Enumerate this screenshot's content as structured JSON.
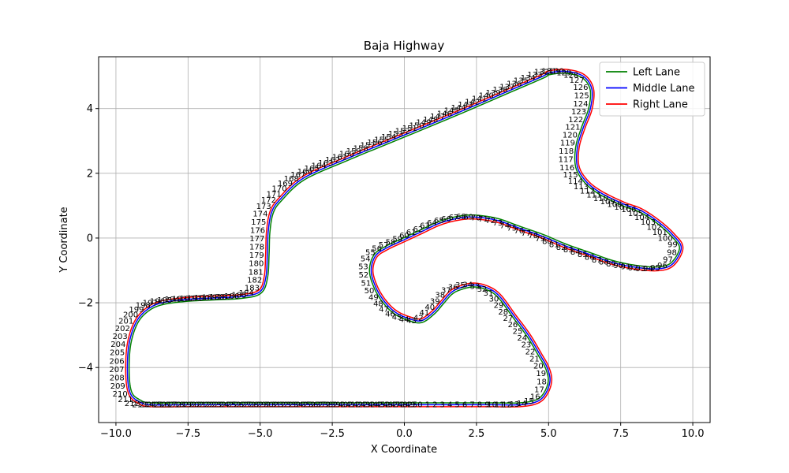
{
  "chart_data": {
    "type": "line",
    "title": "Baja Highway",
    "xlabel": "X Coordinate",
    "ylabel": "Y Coordinate",
    "xlim": [
      -10.6,
      10.6
    ],
    "ylim": [
      -5.7,
      5.6
    ],
    "xticks": [
      -10.0,
      -7.5,
      -5.0,
      -2.5,
      0.0,
      2.5,
      5.0,
      7.5,
      10.0
    ],
    "xtick_labels": [
      "−10.0",
      "−7.5",
      "−5.0",
      "−2.5",
      "0.0",
      "2.5",
      "5.0",
      "7.5",
      "10.0"
    ],
    "yticks": [
      -4,
      -2,
      0,
      2,
      4
    ],
    "ytick_labels": [
      "−4",
      "−2",
      "0",
      "2",
      "4"
    ],
    "grid": true,
    "legend_position": "top-right",
    "centerline": [
      [
        1.0,
        -5.15
      ],
      [
        2.0,
        -5.15
      ],
      [
        3.0,
        -5.15
      ],
      [
        4.0,
        -5.15
      ],
      [
        4.6,
        -5.05
      ],
      [
        4.9,
        -4.8
      ],
      [
        5.05,
        -4.4
      ],
      [
        4.95,
        -4.0
      ],
      [
        4.7,
        -3.6
      ],
      [
        4.3,
        -3.0
      ],
      [
        3.8,
        -2.4
      ],
      [
        3.3,
        -1.8
      ],
      [
        2.9,
        -1.55
      ],
      [
        2.4,
        -1.45
      ],
      [
        1.9,
        -1.55
      ],
      [
        1.6,
        -1.7
      ],
      [
        1.3,
        -2.0
      ],
      [
        1.0,
        -2.3
      ],
      [
        0.6,
        -2.55
      ],
      [
        0.2,
        -2.5
      ],
      [
        -0.3,
        -2.3
      ],
      [
        -0.7,
        -1.95
      ],
      [
        -1.0,
        -1.5
      ],
      [
        -1.15,
        -1.0
      ],
      [
        -1.0,
        -0.55
      ],
      [
        -0.6,
        -0.3
      ],
      [
        0.0,
        -0.05
      ],
      [
        0.6,
        0.2
      ],
      [
        1.2,
        0.45
      ],
      [
        1.8,
        0.6
      ],
      [
        2.4,
        0.65
      ],
      [
        3.2,
        0.55
      ],
      [
        4.0,
        0.3
      ],
      [
        4.8,
        0.05
      ],
      [
        5.6,
        -0.25
      ],
      [
        6.4,
        -0.5
      ],
      [
        7.2,
        -0.75
      ],
      [
        8.0,
        -0.9
      ],
      [
        8.8,
        -0.95
      ],
      [
        9.3,
        -0.8
      ],
      [
        9.6,
        -0.3
      ],
      [
        9.3,
        0.1
      ],
      [
        8.8,
        0.5
      ],
      [
        8.2,
        0.85
      ],
      [
        7.6,
        1.05
      ],
      [
        6.8,
        1.4
      ],
      [
        6.3,
        1.75
      ],
      [
        6.0,
        2.2
      ],
      [
        6.0,
        2.8
      ],
      [
        6.2,
        3.4
      ],
      [
        6.45,
        4.0
      ],
      [
        6.5,
        4.6
      ],
      [
        6.2,
        5.0
      ],
      [
        5.6,
        5.15
      ],
      [
        5.0,
        5.1
      ],
      [
        4.8,
        5.0
      ],
      [
        3.5,
        4.5
      ],
      [
        2.2,
        4.0
      ],
      [
        1.0,
        3.55
      ],
      [
        -0.5,
        3.0
      ],
      [
        -2.0,
        2.45
      ],
      [
        -3.5,
        1.85
      ],
      [
        -4.3,
        1.2
      ],
      [
        -4.6,
        0.8
      ],
      [
        -4.72,
        0.2
      ],
      [
        -4.75,
        -0.5
      ],
      [
        -4.8,
        -1.2
      ],
      [
        -5.0,
        -1.65
      ],
      [
        -5.6,
        -1.8
      ],
      [
        -6.6,
        -1.85
      ],
      [
        -7.6,
        -1.9
      ],
      [
        -8.4,
        -2.0
      ],
      [
        -8.9,
        -2.2
      ],
      [
        -9.3,
        -2.6
      ],
      [
        -9.55,
        -3.3
      ],
      [
        -9.6,
        -4.2
      ],
      [
        -9.5,
        -4.8
      ],
      [
        -9.2,
        -5.05
      ],
      [
        -8.8,
        -5.15
      ],
      [
        -7.5,
        -5.15
      ],
      [
        -5.0,
        -5.15
      ],
      [
        -2.5,
        -5.15
      ],
      [
        0.0,
        -5.15
      ],
      [
        0.4,
        -5.15
      ],
      [
        1.0,
        -5.15
      ]
    ],
    "series": [
      {
        "name": "Left Lane",
        "color": "#008000",
        "offset": 0.06
      },
      {
        "name": "Middle Lane",
        "color": "#0000ff",
        "offset": 0.0
      },
      {
        "name": "Right Lane",
        "color": "#ff0000",
        "offset": -0.06
      }
    ],
    "point_label_count": 250
  }
}
